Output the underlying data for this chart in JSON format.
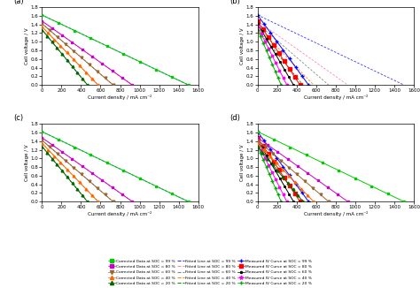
{
  "subplots": [
    "(a)",
    "(b)",
    "(c)",
    "(d)"
  ],
  "xlabel": "Current density / mA cm⁻²",
  "ylabel": "Cell voltage / V",
  "xlim": [
    0,
    1600
  ],
  "ylim": [
    0,
    1.8
  ],
  "xticks": [
    0,
    200,
    400,
    600,
    800,
    1000,
    1200,
    1400,
    1600
  ],
  "yticks": [
    0,
    0.2,
    0.4,
    0.6,
    0.8,
    1.0,
    1.2,
    1.4,
    1.6,
    1.8
  ],
  "soc_levels": [
    99,
    80,
    60,
    40,
    20
  ],
  "ocv": [
    1.62,
    1.48,
    1.42,
    1.35,
    1.28
  ],
  "corrected_colors": [
    "#00CC00",
    "#CC00CC",
    "#996633",
    "#FF6600",
    "#006600"
  ],
  "fitted_colors": [
    "#3333FF",
    "#FF88AA",
    "#888888",
    "#FF8800",
    "#009900"
  ],
  "measured_colors": [
    "#0000FF",
    "#FF0000",
    "#000000",
    "#FF00FF",
    "#00AA00"
  ],
  "corrected_markers": [
    "s",
    "s",
    "v",
    "^",
    "^"
  ],
  "measured_markers": [
    "+",
    "s",
    ".",
    "*",
    "+"
  ],
  "slopes_corrected": [
    -0.00108,
    -0.0016,
    -0.00195,
    -0.00235,
    -0.00275
  ],
  "slopes_fitted": [
    -0.00108,
    -0.0016,
    -0.00195,
    -0.00235,
    -0.00275
  ],
  "slopes_measured": [
    -0.0031,
    -0.0034,
    -0.00385,
    -0.0045,
    -0.0053
  ],
  "n_points_corr": 10,
  "n_points_meas": 9
}
